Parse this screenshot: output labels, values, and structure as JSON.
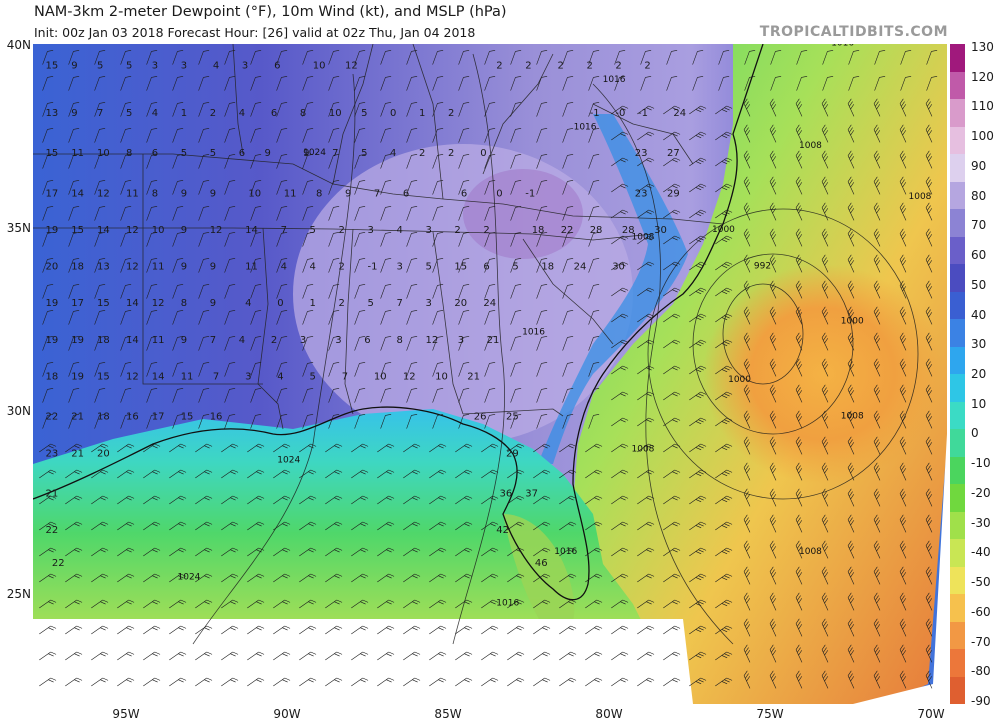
{
  "header": {
    "title": "NAM-3km 2-meter Dewpoint (°F), 10m Wind (kt), and MSLP (hPa)",
    "subtitle": "Init: 00z Jan 03 2018   Forecast Hour: [26]   valid at 02z Thu, Jan 04 2018",
    "brand": "TROPICALTIDBITS.COM"
  },
  "map": {
    "lat_labels": [
      {
        "text": "40N",
        "value": 40
      },
      {
        "text": "35N",
        "value": 35
      },
      {
        "text": "30N",
        "value": 30
      },
      {
        "text": "25N",
        "value": 25
      }
    ],
    "lon_labels": [
      {
        "text": "95W",
        "value": -95
      },
      {
        "text": "90W",
        "value": -90
      },
      {
        "text": "85W",
        "value": -85
      },
      {
        "text": "80W",
        "value": -80
      },
      {
        "text": "75W",
        "value": -75
      },
      {
        "text": "70W",
        "value": -70
      }
    ],
    "dewpoint_labels": [
      {
        "t": "15",
        "lon": -97.5,
        "lat": 39.5
      },
      {
        "t": "9",
        "lon": -96.7,
        "lat": 39.5
      },
      {
        "t": "5",
        "lon": -95.9,
        "lat": 39.5
      },
      {
        "t": "5",
        "lon": -95,
        "lat": 39.5
      },
      {
        "t": "3",
        "lon": -94.2,
        "lat": 39.5
      },
      {
        "t": "3",
        "lon": -93.3,
        "lat": 39.5
      },
      {
        "t": "4",
        "lon": -92.3,
        "lat": 39.5
      },
      {
        "t": "3",
        "lon": -91.4,
        "lat": 39.5
      },
      {
        "t": "6",
        "lon": -90.4,
        "lat": 39.5
      },
      {
        "t": "10",
        "lon": -89.2,
        "lat": 39.5
      },
      {
        "t": "12",
        "lon": -88.2,
        "lat": 39.5
      },
      {
        "t": "2",
        "lon": -83.5,
        "lat": 39.5
      },
      {
        "t": "2",
        "lon": -82.6,
        "lat": 39.5
      },
      {
        "t": "2",
        "lon": -81.6,
        "lat": 39.5
      },
      {
        "t": "2",
        "lon": -80.7,
        "lat": 39.5
      },
      {
        "t": "2",
        "lon": -79.8,
        "lat": 39.5
      },
      {
        "t": "2",
        "lon": -78.9,
        "lat": 39.5
      },
      {
        "t": "13",
        "lon": -97.5,
        "lat": 38.2
      },
      {
        "t": "9",
        "lon": -96.7,
        "lat": 38.2
      },
      {
        "t": "7",
        "lon": -95.9,
        "lat": 38.2
      },
      {
        "t": "5",
        "lon": -95,
        "lat": 38.2
      },
      {
        "t": "4",
        "lon": -94.2,
        "lat": 38.2
      },
      {
        "t": "1",
        "lon": -93.3,
        "lat": 38.2
      },
      {
        "t": "2",
        "lon": -92.4,
        "lat": 38.2
      },
      {
        "t": "4",
        "lon": -91.5,
        "lat": 38.2
      },
      {
        "t": "6",
        "lon": -90.5,
        "lat": 38.2
      },
      {
        "t": "8",
        "lon": -89.6,
        "lat": 38.2
      },
      {
        "t": "10",
        "lon": -88.7,
        "lat": 38.2
      },
      {
        "t": "5",
        "lon": -87.7,
        "lat": 38.2
      },
      {
        "t": "0",
        "lon": -86.8,
        "lat": 38.2
      },
      {
        "t": "1",
        "lon": -85.9,
        "lat": 38.2
      },
      {
        "t": "2",
        "lon": -85,
        "lat": 38.2
      },
      {
        "t": "-1",
        "lon": -80.6,
        "lat": 38.2
      },
      {
        "t": "-0",
        "lon": -79.8,
        "lat": 38.2
      },
      {
        "t": "-1",
        "lon": -79.1,
        "lat": 38.2
      },
      {
        "t": "24",
        "lon": -78,
        "lat": 38.2
      },
      {
        "t": "15",
        "lon": -97.5,
        "lat": 37.1
      },
      {
        "t": "11",
        "lon": -96.7,
        "lat": 37.1
      },
      {
        "t": "10",
        "lon": -95.9,
        "lat": 37.1
      },
      {
        "t": "8",
        "lon": -95,
        "lat": 37.1
      },
      {
        "t": "6",
        "lon": -94.2,
        "lat": 37.1
      },
      {
        "t": "5",
        "lon": -93.3,
        "lat": 37.1
      },
      {
        "t": "5",
        "lon": -92.4,
        "lat": 37.1
      },
      {
        "t": "6",
        "lon": -91.5,
        "lat": 37.1
      },
      {
        "t": "9",
        "lon": -90.7,
        "lat": 37.1
      },
      {
        "t": "9",
        "lon": -89.5,
        "lat": 37.1
      },
      {
        "t": "7",
        "lon": -88.6,
        "lat": 37.1
      },
      {
        "t": "5",
        "lon": -87.7,
        "lat": 37.1
      },
      {
        "t": "4",
        "lon": -86.8,
        "lat": 37.1
      },
      {
        "t": "2",
        "lon": -85.9,
        "lat": 37.1
      },
      {
        "t": "2",
        "lon": -85,
        "lat": 37.1
      },
      {
        "t": "0",
        "lon": -84,
        "lat": 37.1
      },
      {
        "t": "23",
        "lon": -79.2,
        "lat": 37.1
      },
      {
        "t": "27",
        "lon": -78.2,
        "lat": 37.1
      },
      {
        "t": "17",
        "lon": -97.5,
        "lat": 36
      },
      {
        "t": "14",
        "lon": -96.7,
        "lat": 36
      },
      {
        "t": "12",
        "lon": -95.9,
        "lat": 36
      },
      {
        "t": "11",
        "lon": -95,
        "lat": 36
      },
      {
        "t": "8",
        "lon": -94.2,
        "lat": 36
      },
      {
        "t": "9",
        "lon": -93.3,
        "lat": 36
      },
      {
        "t": "9",
        "lon": -92.4,
        "lat": 36
      },
      {
        "t": "10",
        "lon": -91.2,
        "lat": 36
      },
      {
        "t": "11",
        "lon": -90.1,
        "lat": 36
      },
      {
        "t": "8",
        "lon": -89.1,
        "lat": 36
      },
      {
        "t": "9",
        "lon": -88.2,
        "lat": 36
      },
      {
        "t": "7",
        "lon": -87.3,
        "lat": 36
      },
      {
        "t": "6",
        "lon": -86.4,
        "lat": 36
      },
      {
        "t": "6",
        "lon": -84.6,
        "lat": 36
      },
      {
        "t": "0",
        "lon": -83.5,
        "lat": 36
      },
      {
        "t": "-1",
        "lon": -82.6,
        "lat": 36
      },
      {
        "t": "23",
        "lon": -79.2,
        "lat": 36
      },
      {
        "t": "29",
        "lon": -78.2,
        "lat": 36
      },
      {
        "t": "19",
        "lon": -97.5,
        "lat": 35
      },
      {
        "t": "15",
        "lon": -96.7,
        "lat": 35
      },
      {
        "t": "14",
        "lon": -95.9,
        "lat": 35
      },
      {
        "t": "12",
        "lon": -95,
        "lat": 35
      },
      {
        "t": "10",
        "lon": -94.2,
        "lat": 35
      },
      {
        "t": "9",
        "lon": -93.3,
        "lat": 35
      },
      {
        "t": "12",
        "lon": -92.4,
        "lat": 35
      },
      {
        "t": "14",
        "lon": -91.3,
        "lat": 35
      },
      {
        "t": "7",
        "lon": -90.2,
        "lat": 35
      },
      {
        "t": "5",
        "lon": -89.3,
        "lat": 35
      },
      {
        "t": "2",
        "lon": -88.4,
        "lat": 35
      },
      {
        "t": "3",
        "lon": -87.5,
        "lat": 35
      },
      {
        "t": "4",
        "lon": -86.6,
        "lat": 35
      },
      {
        "t": "3",
        "lon": -85.7,
        "lat": 35
      },
      {
        "t": "2",
        "lon": -84.8,
        "lat": 35
      },
      {
        "t": "2",
        "lon": -83.9,
        "lat": 35
      },
      {
        "t": "18",
        "lon": -82.4,
        "lat": 35
      },
      {
        "t": "22",
        "lon": -81.5,
        "lat": 35
      },
      {
        "t": "28",
        "lon": -80.6,
        "lat": 35
      },
      {
        "t": "28",
        "lon": -79.6,
        "lat": 35
      },
      {
        "t": "30",
        "lon": -78.6,
        "lat": 35
      },
      {
        "t": "20",
        "lon": -97.5,
        "lat": 34
      },
      {
        "t": "18",
        "lon": -96.7,
        "lat": 34
      },
      {
        "t": "13",
        "lon": -95.9,
        "lat": 34
      },
      {
        "t": "12",
        "lon": -95,
        "lat": 34
      },
      {
        "t": "11",
        "lon": -94.2,
        "lat": 34
      },
      {
        "t": "9",
        "lon": -93.3,
        "lat": 34
      },
      {
        "t": "9",
        "lon": -92.4,
        "lat": 34
      },
      {
        "t": "11",
        "lon": -91.3,
        "lat": 34
      },
      {
        "t": "4",
        "lon": -90.2,
        "lat": 34
      },
      {
        "t": "4",
        "lon": -89.3,
        "lat": 34
      },
      {
        "t": "2",
        "lon": -88.4,
        "lat": 34
      },
      {
        "t": "-1",
        "lon": -87.5,
        "lat": 34
      },
      {
        "t": "3",
        "lon": -86.6,
        "lat": 34
      },
      {
        "t": "5",
        "lon": -85.7,
        "lat": 34
      },
      {
        "t": "15",
        "lon": -84.8,
        "lat": 34
      },
      {
        "t": "6",
        "lon": -83.9,
        "lat": 34
      },
      {
        "t": "5",
        "lon": -83,
        "lat": 34
      },
      {
        "t": "18",
        "lon": -82.1,
        "lat": 34
      },
      {
        "t": "24",
        "lon": -81.1,
        "lat": 34
      },
      {
        "t": "30",
        "lon": -79.9,
        "lat": 34
      },
      {
        "t": "19",
        "lon": -97.5,
        "lat": 33
      },
      {
        "t": "17",
        "lon": -96.7,
        "lat": 33
      },
      {
        "t": "15",
        "lon": -95.9,
        "lat": 33
      },
      {
        "t": "14",
        "lon": -95,
        "lat": 33
      },
      {
        "t": "12",
        "lon": -94.2,
        "lat": 33
      },
      {
        "t": "8",
        "lon": -93.3,
        "lat": 33
      },
      {
        "t": "9",
        "lon": -92.4,
        "lat": 33
      },
      {
        "t": "4",
        "lon": -91.3,
        "lat": 33
      },
      {
        "t": "0",
        "lon": -90.3,
        "lat": 33
      },
      {
        "t": "1",
        "lon": -89.3,
        "lat": 33
      },
      {
        "t": "2",
        "lon": -88.4,
        "lat": 33
      },
      {
        "t": "5",
        "lon": -87.5,
        "lat": 33
      },
      {
        "t": "7",
        "lon": -86.6,
        "lat": 33
      },
      {
        "t": "3",
        "lon": -85.7,
        "lat": 33
      },
      {
        "t": "20",
        "lon": -84.8,
        "lat": 33
      },
      {
        "t": "24",
        "lon": -83.9,
        "lat": 33
      },
      {
        "t": "19",
        "lon": -97.5,
        "lat": 32
      },
      {
        "t": "19",
        "lon": -96.7,
        "lat": 32
      },
      {
        "t": "18",
        "lon": -95.9,
        "lat": 32
      },
      {
        "t": "14",
        "lon": -95,
        "lat": 32
      },
      {
        "t": "11",
        "lon": -94.2,
        "lat": 32
      },
      {
        "t": "9",
        "lon": -93.3,
        "lat": 32
      },
      {
        "t": "7",
        "lon": -92.4,
        "lat": 32
      },
      {
        "t": "4",
        "lon": -91.5,
        "lat": 32
      },
      {
        "t": "2",
        "lon": -90.5,
        "lat": 32
      },
      {
        "t": "3",
        "lon": -89.6,
        "lat": 32
      },
      {
        "t": "3",
        "lon": -88.5,
        "lat": 32
      },
      {
        "t": "6",
        "lon": -87.6,
        "lat": 32
      },
      {
        "t": "8",
        "lon": -86.6,
        "lat": 32
      },
      {
        "t": "12",
        "lon": -85.7,
        "lat": 32
      },
      {
        "t": "3",
        "lon": -84.7,
        "lat": 32
      },
      {
        "t": "21",
        "lon": -83.8,
        "lat": 32
      },
      {
        "t": "18",
        "lon": -97.5,
        "lat": 31
      },
      {
        "t": "19",
        "lon": -96.7,
        "lat": 31
      },
      {
        "t": "15",
        "lon": -95.9,
        "lat": 31
      },
      {
        "t": "12",
        "lon": -95,
        "lat": 31
      },
      {
        "t": "14",
        "lon": -94.2,
        "lat": 31
      },
      {
        "t": "11",
        "lon": -93.3,
        "lat": 31
      },
      {
        "t": "7",
        "lon": -92.3,
        "lat": 31
      },
      {
        "t": "3",
        "lon": -91.3,
        "lat": 31
      },
      {
        "t": "4",
        "lon": -90.3,
        "lat": 31
      },
      {
        "t": "5",
        "lon": -89.3,
        "lat": 31
      },
      {
        "t": "7",
        "lon": -88.3,
        "lat": 31
      },
      {
        "t": "10",
        "lon": -87.3,
        "lat": 31
      },
      {
        "t": "12",
        "lon": -86.4,
        "lat": 31
      },
      {
        "t": "10",
        "lon": -85.4,
        "lat": 31
      },
      {
        "t": "21",
        "lon": -84.4,
        "lat": 31
      },
      {
        "t": "22",
        "lon": -97.5,
        "lat": 29.9
      },
      {
        "t": "21",
        "lon": -96.7,
        "lat": 29.9
      },
      {
        "t": "18",
        "lon": -95.9,
        "lat": 29.9
      },
      {
        "t": "16",
        "lon": -95,
        "lat": 29.9
      },
      {
        "t": "17",
        "lon": -94.2,
        "lat": 29.9
      },
      {
        "t": "15",
        "lon": -93.3,
        "lat": 29.9
      },
      {
        "t": "16",
        "lon": -92.4,
        "lat": 29.9
      },
      {
        "t": "26",
        "lon": -84.2,
        "lat": 29.9
      },
      {
        "t": "25",
        "lon": -83.2,
        "lat": 29.9
      },
      {
        "t": "23",
        "lon": -97.5,
        "lat": 28.9
      },
      {
        "t": "21",
        "lon": -96.7,
        "lat": 28.9
      },
      {
        "t": "20",
        "lon": -95.9,
        "lat": 28.9
      },
      {
        "t": "29",
        "lon": -83.2,
        "lat": 28.9
      },
      {
        "t": "21",
        "lon": -97.5,
        "lat": 27.8
      },
      {
        "t": "36",
        "lon": -83.4,
        "lat": 27.8
      },
      {
        "t": "37",
        "lon": -82.6,
        "lat": 27.8
      },
      {
        "t": "22",
        "lon": -97.5,
        "lat": 26.8
      },
      {
        "t": "42",
        "lon": -83.5,
        "lat": 26.8
      },
      {
        "t": "22",
        "lon": -97.3,
        "lat": 25.9
      },
      {
        "t": "46",
        "lon": -82.3,
        "lat": 25.9
      }
    ],
    "mslp_labels": [
      {
        "t": "1016",
        "lon": -73.1,
        "lat": 40.1
      },
      {
        "t": "1016",
        "lon": -80.2,
        "lat": 39.1
      },
      {
        "t": "1016",
        "lon": -81.1,
        "lat": 37.8
      },
      {
        "t": "1024",
        "lon": -89.5,
        "lat": 37.1
      },
      {
        "t": "1008",
        "lon": -74.1,
        "lat": 37.3
      },
      {
        "t": "1008",
        "lon": -70.7,
        "lat": 35.9
      },
      {
        "t": "1008",
        "lon": -79.3,
        "lat": 34.8
      },
      {
        "t": "1000",
        "lon": -76.8,
        "lat": 35
      },
      {
        "t": "992",
        "lon": -75.5,
        "lat": 34
      },
      {
        "t": "1016",
        "lon": -82.7,
        "lat": 32.2
      },
      {
        "t": "1000",
        "lon": -72.8,
        "lat": 32.5
      },
      {
        "t": "1000",
        "lon": -76.3,
        "lat": 30.9
      },
      {
        "t": "1008",
        "lon": -72.8,
        "lat": 29.9
      },
      {
        "t": "1008",
        "lon": -79.3,
        "lat": 29
      },
      {
        "t": "1024",
        "lon": -90.3,
        "lat": 28.7
      },
      {
        "t": "1008",
        "lon": -74.1,
        "lat": 26.2
      },
      {
        "t": "1016",
        "lon": -81.7,
        "lat": 26.2
      },
      {
        "t": "1024",
        "lon": -93.4,
        "lat": 25.5
      },
      {
        "t": "1016",
        "lon": -83.5,
        "lat": 24.8
      }
    ]
  },
  "colorbar": {
    "labels": [
      "130",
      "120",
      "110",
      "100",
      "90",
      "80",
      "70",
      "60",
      "50",
      "40",
      "30",
      "20",
      "10",
      "0",
      "-10",
      "-20",
      "-30",
      "-40",
      "-50",
      "-60",
      "-70",
      "-80",
      "-90"
    ],
    "colors": [
      "#a0197c",
      "#c05aa9",
      "#d99bcb",
      "#e6bfe0",
      "#ddd0ee",
      "#b5a6e0",
      "#8c83d4",
      "#6a5fc9",
      "#4b4cc0",
      "#3a5fd2",
      "#3b82e4",
      "#2ea6ee",
      "#2ec6e6",
      "#3bdbc5",
      "#40d99a",
      "#4bd55e",
      "#70d83e",
      "#a0e04a",
      "#c9e654",
      "#eee35a",
      "#f6c14d",
      "#f29844",
      "#ec773a",
      "#df5f30"
    ]
  }
}
